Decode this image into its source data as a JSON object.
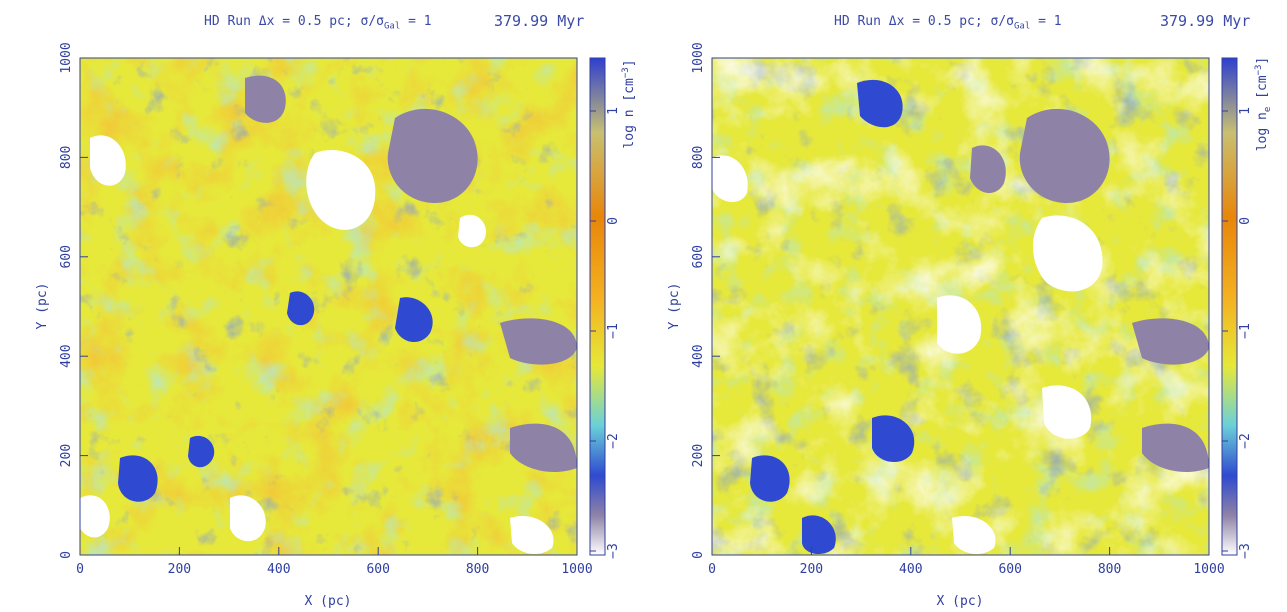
{
  "panels": [
    {
      "title": "HD Run Δx = 0.5 pc; σ/σ",
      "title_sub": "Gal",
      "title_suffix": " = 1",
      "time": "379.99 Myr",
      "cbar_label_main": "log n [cm",
      "cbar_label_sup": "−3",
      "cbar_label_end": "]",
      "cbar_label_sub": "",
      "variant": "n"
    },
    {
      "title": "HD Run Δx = 0.5 pc; σ/σ",
      "title_sub": "Gal",
      "title_suffix": " = 1",
      "time": "379.99 Myr",
      "cbar_label_main": "log n",
      "cbar_label_sub": "e",
      "cbar_label_mid": " [cm",
      "cbar_label_sup": "−3",
      "cbar_label_end": "]",
      "variant": "ne"
    }
  ],
  "chart_data": [
    {
      "type": "heatmap",
      "title": "HD Run Δx = 0.5 pc; σ/σGal = 1",
      "annotation": "379.99 Myr",
      "xlabel": "X (pc)",
      "ylabel": "Y (pc)",
      "xlim": [
        0,
        1000
      ],
      "ylim": [
        0,
        1000
      ],
      "xticks": [
        "0",
        "200",
        "400",
        "600",
        "800",
        "1000"
      ],
      "yticks": [
        "0",
        "200",
        "400",
        "600",
        "800",
        "1000"
      ],
      "colorbar": {
        "label": "log n [cm−3]",
        "range": [
          -3,
          1.3
        ],
        "ticks": [
          "−3",
          "−2",
          "−1",
          "0",
          "1"
        ],
        "colormap": [
          "#ffffff",
          "#8e82a6",
          "#2f4ad0",
          "#6ad0d8",
          "#e6e838",
          "#f4b020",
          "#e8860a",
          "#c8c070",
          "#2f3fd0"
        ]
      },
      "grid": false
    },
    {
      "type": "heatmap",
      "title": "HD Run Δx = 0.5 pc; σ/σGal = 1",
      "annotation": "379.99 Myr",
      "xlabel": "X (pc)",
      "ylabel": "Y (pc)",
      "xlim": [
        0,
        1000
      ],
      "ylim": [
        0,
        1000
      ],
      "xticks": [
        "0",
        "200",
        "400",
        "600",
        "800",
        "1000"
      ],
      "yticks": [
        "0",
        "200",
        "400",
        "600",
        "800",
        "1000"
      ],
      "colorbar": {
        "label": "log ne [cm−3]",
        "range": [
          -3,
          1.3
        ],
        "ticks": [
          "−3",
          "−2",
          "−1",
          "0",
          "1"
        ],
        "colormap": [
          "#ffffff",
          "#8e82a6",
          "#2f4ad0",
          "#6ad0d8",
          "#e6e838",
          "#f4b020",
          "#e8860a",
          "#c8c070",
          "#2f3fd0"
        ]
      },
      "grid": false
    }
  ]
}
